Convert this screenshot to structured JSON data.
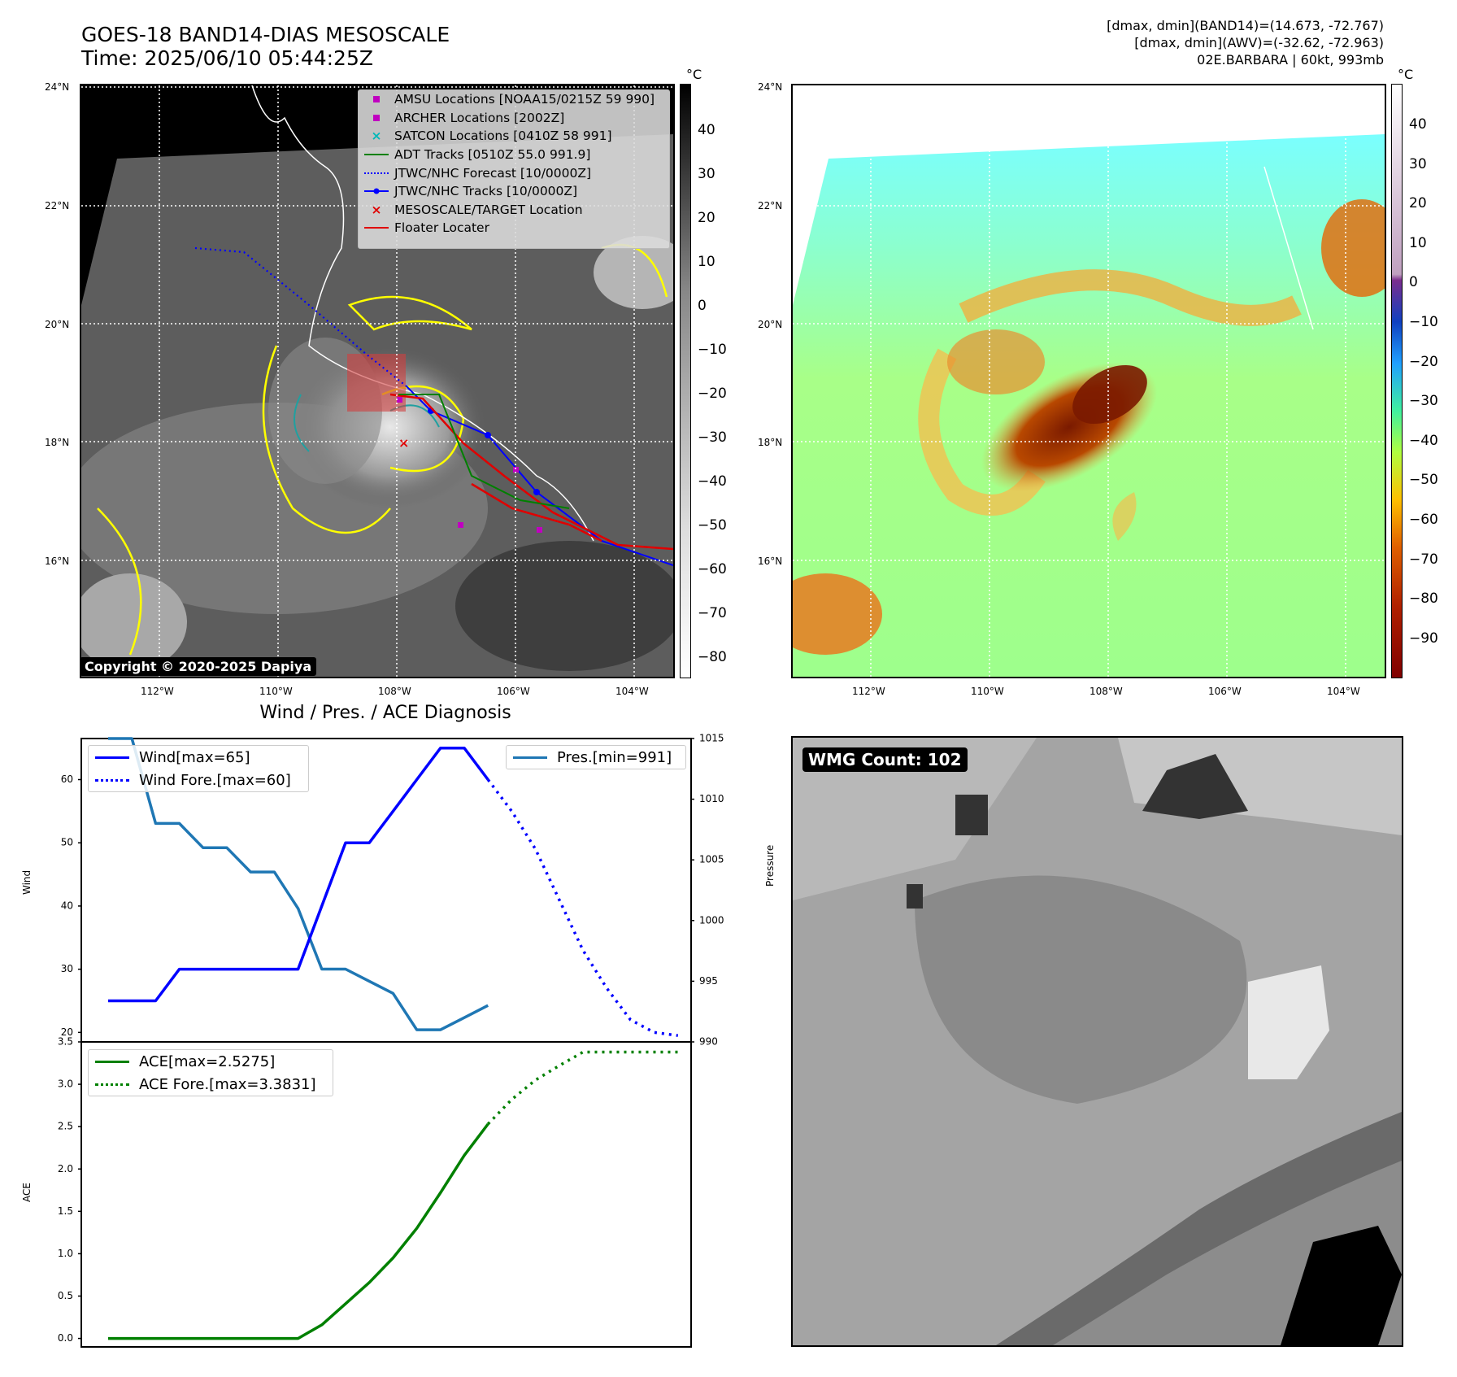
{
  "header": {
    "title_line1": "GOES-18 BAND14-DIAS MESOSCALE",
    "title_line2": "Time: 2025/06/10 05:44:25Z",
    "meta_line1": "[dmax, dmin](BAND14)=(14.673, -72.767)",
    "meta_line2": "[dmax, dmin](AWV)=(-32.62, -72.963)",
    "meta_line3": "02E.BARBARA | 60kt, 993mb"
  },
  "maps": {
    "lat_labels": [
      "24°N",
      "22°N",
      "20°N",
      "18°N",
      "16°N"
    ],
    "lon_labels": [
      "112°W",
      "110°W",
      "108°W",
      "106°W",
      "104°W"
    ],
    "copyright": "Copyright © 2020-2025 Dapiya",
    "colorbar_unit": "°C",
    "ir_colorbar_ticks": [
      "40",
      "30",
      "20",
      "10",
      "0",
      "−10",
      "−20",
      "−30",
      "−40",
      "−50",
      "−60",
      "−70",
      "−80"
    ],
    "awv_colorbar_ticks": [
      "40",
      "30",
      "20",
      "10",
      "0",
      "−10",
      "−20",
      "−30",
      "−40",
      "−50",
      "−60",
      "−70",
      "−80",
      "−90"
    ],
    "legend": [
      {
        "label": "AMSU Locations [NOAA15/0215Z 59 990]",
        "symbol": "square",
        "color": "#c000c0"
      },
      {
        "label": "ARCHER Locations [2002Z]",
        "symbol": "square",
        "color": "#c000c0"
      },
      {
        "label": "SATCON Locations [0410Z 58 991]",
        "symbol": "x",
        "color": "#00b8b8"
      },
      {
        "label": "ADT Tracks [0510Z 55.0 991.9]",
        "symbol": "line",
        "color": "#008000"
      },
      {
        "label": "JTWC/NHC Forecast [10/0000Z]",
        "symbol": "dotted",
        "color": "#0000ff"
      },
      {
        "label": "JTWC/NHC Tracks [10/0000Z]",
        "symbol": "dotline",
        "color": "#0000ff"
      },
      {
        "label": "MESOSCALE/TARGET Location",
        "symbol": "x",
        "color": "#e00000"
      },
      {
        "label": "Floater Locater",
        "symbol": "line",
        "color": "#e00000"
      }
    ]
  },
  "wmg": {
    "label": "WMG Count: 102"
  },
  "chart_data": [
    {
      "type": "line",
      "title": "Wind / Pres. / ACE Diagnosis",
      "ylabel": "Wind",
      "ylabel_right": "Pressure",
      "ylim": [
        18.5,
        66.5
      ],
      "ylim_right": [
        990,
        1015
      ],
      "yticks": [
        "60",
        "50",
        "40",
        "30",
        "20"
      ],
      "yticks_right": [
        "1015",
        "1010",
        "1005",
        "1000",
        "995",
        "990"
      ],
      "x": [
        0,
        1,
        2,
        3,
        4,
        5,
        6,
        7,
        8,
        9,
        10,
        11,
        12,
        13,
        14,
        15,
        16,
        17,
        18,
        19,
        20,
        21,
        22,
        23,
        24
      ],
      "series": [
        {
          "name": "Wind[max=65]",
          "color": "#0000ff",
          "style": "solid",
          "x": [
            0,
            1,
            2,
            3,
            4,
            5,
            6,
            7,
            8,
            9,
            10,
            11,
            12,
            13,
            14,
            15,
            16
          ],
          "values": [
            25,
            25,
            25,
            30,
            30,
            30,
            30,
            30,
            30,
            40,
            50,
            50,
            55,
            60,
            65,
            65,
            60
          ]
        },
        {
          "name": "Wind Fore.[max=60]",
          "color": "#0000ff",
          "style": "dotted",
          "x": [
            16,
            17,
            18,
            19,
            20,
            21,
            22,
            23,
            24
          ],
          "values": [
            60,
            55,
            49,
            41,
            33,
            27,
            22,
            20,
            19.5
          ]
        },
        {
          "name": "Pres.[min=991]",
          "color": "#1f77b4",
          "style": "solid",
          "axis": "right",
          "x": [
            0,
            1,
            2,
            3,
            4,
            5,
            6,
            7,
            8,
            9,
            10,
            11,
            12,
            13,
            14,
            15,
            16
          ],
          "values": [
            1015,
            1015,
            1008,
            1008,
            1006,
            1006,
            1004,
            1004,
            1001,
            996,
            996,
            995,
            994,
            991,
            991,
            992,
            993
          ]
        }
      ]
    },
    {
      "type": "line",
      "ylabel": "ACE",
      "ylim": [
        -0.1,
        3.5
      ],
      "yticks": [
        "3.5",
        "3.0",
        "2.5",
        "2.0",
        "1.5",
        "1.0",
        "0.5",
        "0.0"
      ],
      "series": [
        {
          "name": "ACE[max=2.5275]",
          "color": "#008000",
          "style": "solid",
          "x": [
            0,
            1,
            2,
            3,
            4,
            5,
            6,
            7,
            8,
            9,
            10,
            11,
            12,
            13,
            14,
            15,
            16
          ],
          "values": [
            0,
            0,
            0,
            0,
            0,
            0,
            0,
            0,
            0,
            0.16,
            0.41,
            0.66,
            0.95,
            1.3,
            1.72,
            2.16,
            2.53
          ]
        },
        {
          "name": "ACE Fore.[max=3.3831]",
          "color": "#008000",
          "style": "dotted",
          "x": [
            16,
            17,
            18,
            19,
            20,
            21,
            22,
            23,
            24
          ],
          "values": [
            2.53,
            2.82,
            3.05,
            3.22,
            3.38,
            3.38,
            3.38,
            3.38,
            3.38
          ]
        }
      ]
    }
  ]
}
